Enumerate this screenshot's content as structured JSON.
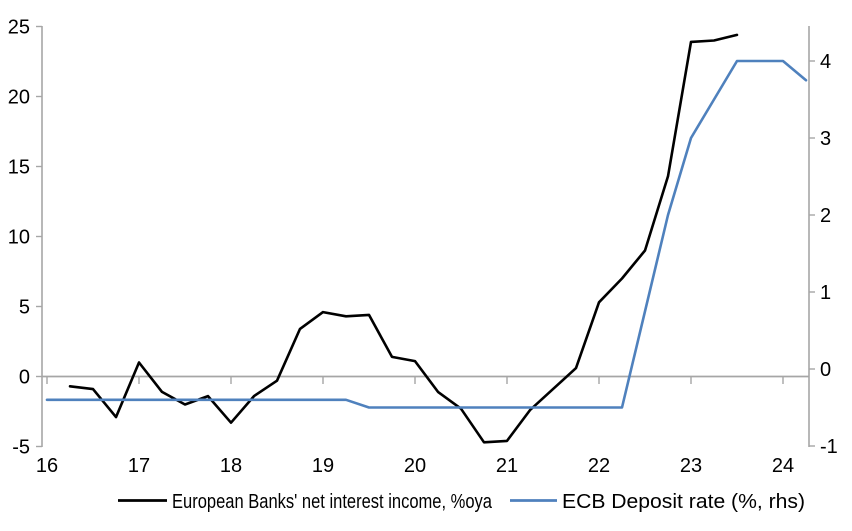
{
  "chart_data": {
    "type": "line",
    "title": "",
    "xlabel": "",
    "ylabel_left": "",
    "ylabel_right": "",
    "grid": false,
    "legend_position": "bottom",
    "x_axis": {
      "min": 16,
      "max": 24.3,
      "ticks": [
        16,
        17,
        18,
        19,
        20,
        21,
        22,
        23,
        24
      ]
    },
    "left_axis": {
      "min": -5,
      "max": 25,
      "ticks": [
        25,
        20,
        15,
        10,
        5,
        0,
        -5
      ]
    },
    "right_axis": {
      "min": -1,
      "max": 4.45,
      "ticks": [
        4,
        3,
        2,
        1,
        0,
        -1
      ]
    },
    "axis_color": "#a6a6a6",
    "series": [
      {
        "name": "European Banks' net interest income, %oya",
        "axis": "left",
        "color": "#000000",
        "x": [
          16.25,
          16.5,
          16.75,
          17,
          17.25,
          17.5,
          17.75,
          18,
          18.25,
          18.5,
          18.75,
          19,
          19.25,
          19.5,
          19.75,
          20,
          20.25,
          20.5,
          20.75,
          21,
          21.25,
          21.5,
          21.75,
          22,
          22.25,
          22.5,
          22.75,
          23,
          23.25,
          23.5
        ],
        "values": [
          -0.7,
          -0.9,
          -2.9,
          1.0,
          -1.1,
          -2.0,
          -1.4,
          -3.3,
          -1.4,
          -0.3,
          3.4,
          4.6,
          4.3,
          4.4,
          1.4,
          1.1,
          -1.1,
          -2.3,
          -4.7,
          -4.6,
          -2.4,
          -0.9,
          0.6,
          5.3,
          7.0,
          9.0,
          14.3,
          23.9,
          24.0,
          24.4
        ]
      },
      {
        "name": "ECB Deposit rate (%, rhs)",
        "axis": "right",
        "color": "#4f81bd",
        "x": [
          16,
          16.25,
          16.5,
          16.75,
          17,
          17.25,
          17.5,
          17.75,
          18,
          18.25,
          18.5,
          18.75,
          19,
          19.25,
          19.5,
          19.75,
          20,
          20.25,
          20.5,
          20.75,
          21,
          21.25,
          21.5,
          21.75,
          22,
          22.25,
          22.5,
          22.75,
          23,
          23.25,
          23.5,
          23.75,
          24,
          24.25
        ],
        "values": [
          -0.4,
          -0.4,
          -0.4,
          -0.4,
          -0.4,
          -0.4,
          -0.4,
          -0.4,
          -0.4,
          -0.4,
          -0.4,
          -0.4,
          -0.4,
          -0.4,
          -0.5,
          -0.5,
          -0.5,
          -0.5,
          -0.5,
          -0.5,
          -0.5,
          -0.5,
          -0.5,
          -0.5,
          -0.5,
          -0.5,
          0.75,
          2.0,
          3.0,
          3.5,
          4.0,
          4.0,
          4.0,
          3.75
        ]
      }
    ]
  }
}
